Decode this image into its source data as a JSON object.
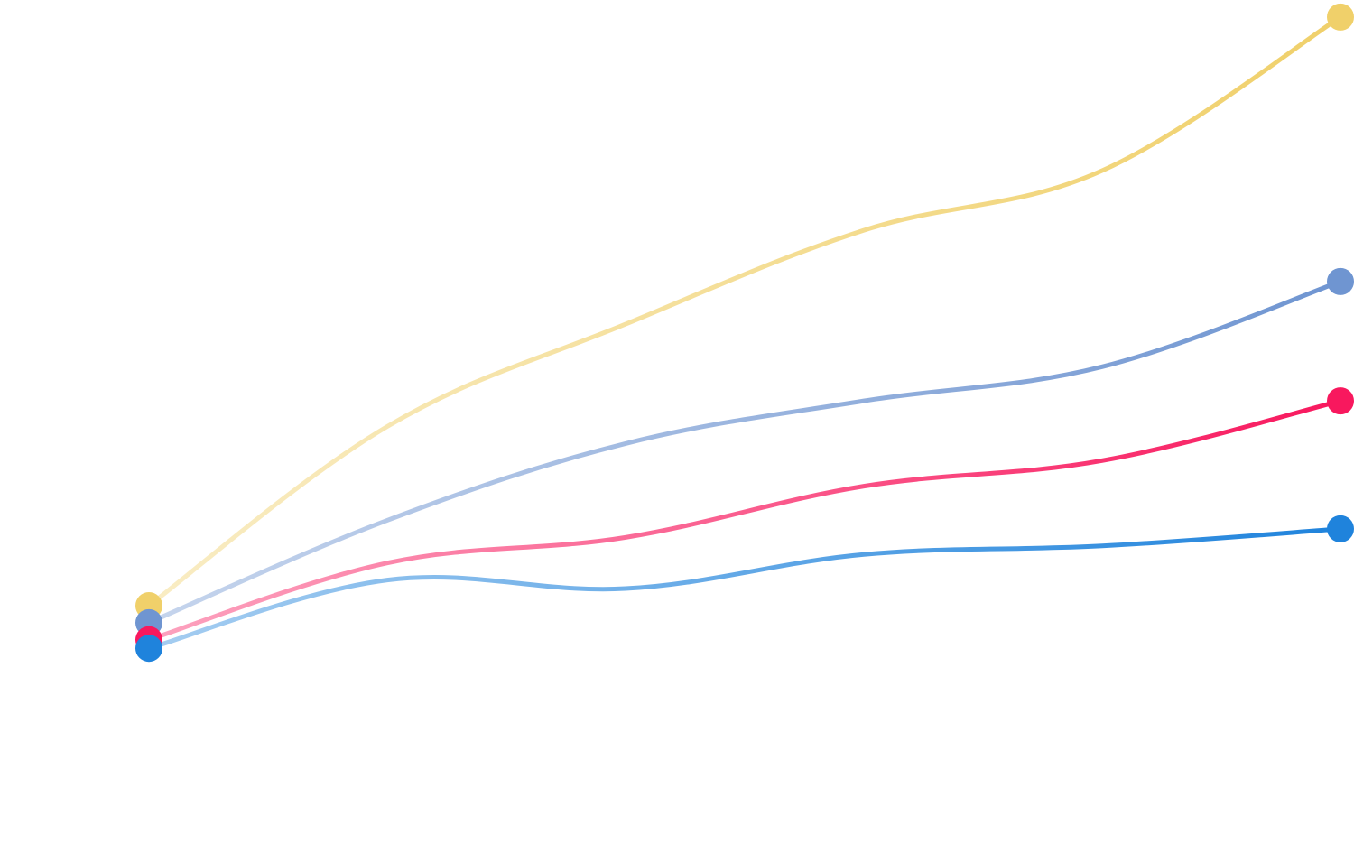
{
  "chart_data": {
    "type": "line",
    "title": "",
    "xlabel": "",
    "ylabel": "",
    "x": [
      0,
      1,
      2,
      3,
      4,
      5
    ],
    "ylim": [
      0,
      100
    ],
    "grid": false,
    "legend": "none",
    "series": [
      {
        "color": "#F0D06A",
        "values": [
          29,
          50,
          62,
          73,
          80,
          98
        ]
      },
      {
        "color": "#6F95D1",
        "values": [
          27,
          39,
          48,
          53,
          57,
          67
        ]
      },
      {
        "color": "#F8185E",
        "values": [
          25,
          34,
          37,
          43,
          46,
          53
        ]
      },
      {
        "color": "#1F83DC",
        "values": [
          24,
          32,
          31,
          35,
          36,
          38
        ]
      }
    ]
  }
}
